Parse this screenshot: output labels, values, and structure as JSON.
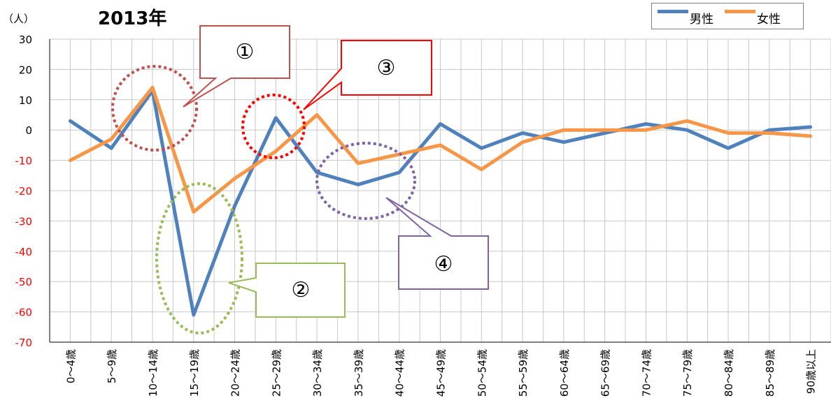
{
  "title": "2013年",
  "y_unit": "（人）",
  "colors": {
    "male": "#4f81bd",
    "female": "#f79646",
    "grid": "#c8c8c8",
    "axis": "#000000",
    "ytick_text": "#ff0000",
    "callout1": "#c0504d",
    "callout2": "#9bbb59",
    "callout3": "#ff0000",
    "callout4": "#8064a2"
  },
  "legend": {
    "male": "男性",
    "female": "女性"
  },
  "callouts": {
    "c1": "①",
    "c2": "②",
    "c3": "③",
    "c4": "④"
  },
  "chart_data": {
    "type": "line",
    "title": "2013年",
    "ylabel": "（人）",
    "ylim": [
      -70,
      30
    ],
    "yticks": [
      30,
      20,
      10,
      0,
      -10,
      -20,
      -30,
      -40,
      -50,
      -60,
      -70
    ],
    "grid": true,
    "legend_position": "top-right",
    "categories": [
      "0～4歳",
      "5～9歳",
      "10～14歳",
      "15～19歳",
      "20～24歳",
      "25～29歳",
      "30～34歳",
      "35～39歳",
      "40～44歳",
      "45～49歳",
      "50～54歳",
      "55～59歳",
      "60～64歳",
      "65～69歳",
      "70～74歳",
      "75～79歳",
      "80～84歳",
      "85～89歳",
      "90歳以上"
    ],
    "series": [
      {
        "name": "男性",
        "values": [
          3,
          -6,
          13,
          -61,
          -25,
          4,
          -14,
          -18,
          -14,
          2,
          -6,
          -1,
          -4,
          -1,
          2,
          0,
          -6,
          0,
          1
        ]
      },
      {
        "name": "女性",
        "values": [
          -10,
          -3,
          14,
          -27,
          -16,
          -7,
          5,
          -11,
          -8,
          -5,
          -13,
          -4,
          0,
          0,
          0,
          3,
          -1,
          -1,
          -2
        ]
      }
    ]
  }
}
